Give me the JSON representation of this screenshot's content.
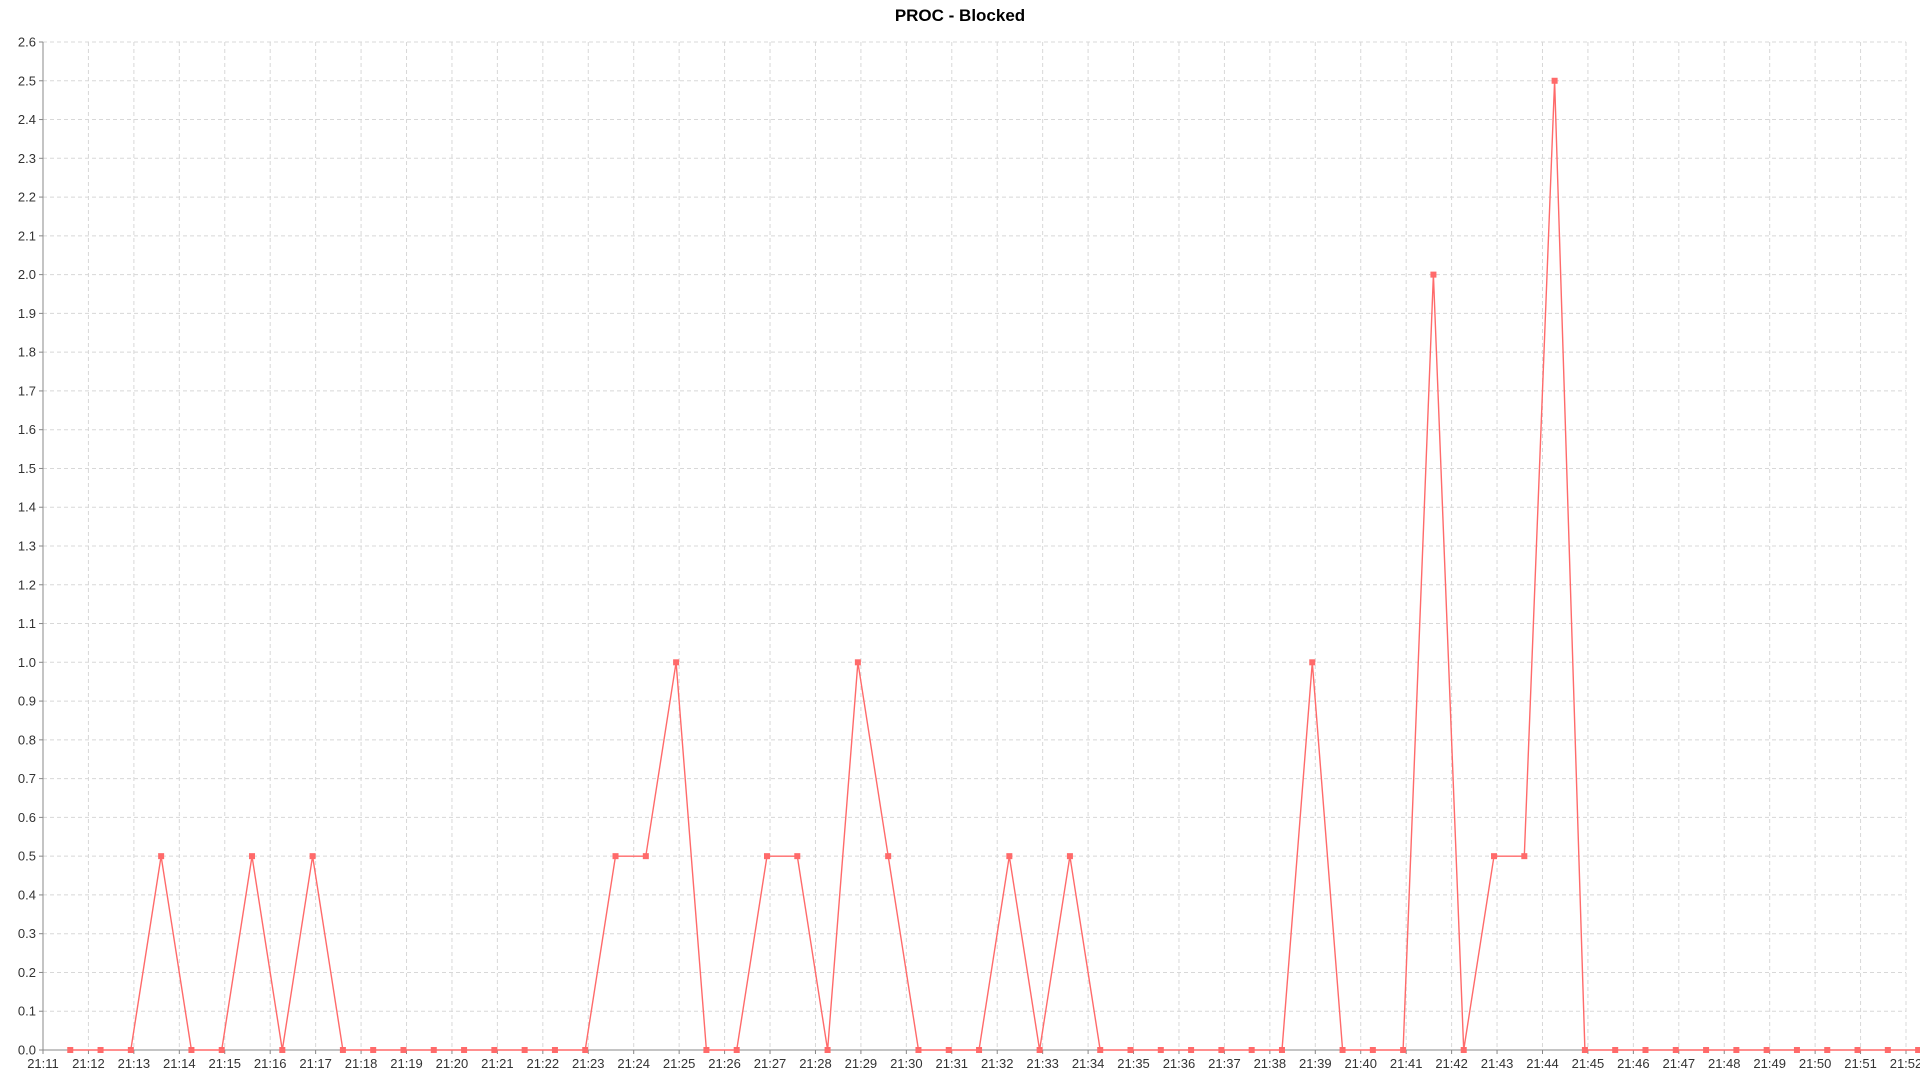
{
  "chart_data": {
    "type": "line",
    "title": "PROC - Blocked",
    "xlabel": "",
    "ylabel": "",
    "ylim": [
      0,
      2.6
    ],
    "y_ticks": [
      "0.0",
      "0.1",
      "0.2",
      "0.3",
      "0.4",
      "0.5",
      "0.6",
      "0.7",
      "0.8",
      "0.9",
      "1.0",
      "1.1",
      "1.2",
      "1.3",
      "1.4",
      "1.5",
      "1.6",
      "1.7",
      "1.8",
      "1.9",
      "2.0",
      "2.1",
      "2.2",
      "2.3",
      "2.4",
      "2.5",
      "2.6"
    ],
    "x_tick_labels": [
      "21:11",
      "21:12",
      "21:13",
      "21:14",
      "21:15",
      "21:16",
      "21:17",
      "21:18",
      "21:19",
      "21:20",
      "21:21",
      "21:22",
      "21:23",
      "21:24",
      "21:25",
      "21:26",
      "21:27",
      "21:28",
      "21:29",
      "21:30",
      "21:31",
      "21:32",
      "21:33",
      "21:34",
      "21:35",
      "21:36",
      "21:37",
      "21:38",
      "21:39",
      "21:40",
      "21:41",
      "21:42",
      "21:43",
      "21:44",
      "21:45",
      "21:46",
      "21:47",
      "21:48",
      "21:49",
      "21:50",
      "21:51",
      "21:52"
    ],
    "grid": true,
    "line_color": "#ff6a6a",
    "series": [
      {
        "x": [
          "21:11:36",
          "21:12:16",
          "21:12:56",
          "21:13:36",
          "21:14:16",
          "21:14:56",
          "21:15:36",
          "21:16:16",
          "21:16:56",
          "21:17:36",
          "21:18:16",
          "21:18:56",
          "21:19:36",
          "21:20:16",
          "21:20:56",
          "21:21:36",
          "21:22:16",
          "21:22:56",
          "21:23:36",
          "21:24:16",
          "21:24:56",
          "21:25:36",
          "21:26:16",
          "21:26:56",
          "21:27:36",
          "21:28:16",
          "21:28:56",
          "21:29:36",
          "21:30:16",
          "21:30:56",
          "21:31:36",
          "21:32:16",
          "21:32:56",
          "21:33:36",
          "21:34:16",
          "21:34:56",
          "21:35:36",
          "21:36:16",
          "21:36:56",
          "21:37:36",
          "21:38:16",
          "21:38:56",
          "21:39:36",
          "21:40:16",
          "21:40:56",
          "21:41:36",
          "21:42:16",
          "21:42:56",
          "21:43:36",
          "21:44:16",
          "21:44:56",
          "21:45:36",
          "21:46:16",
          "21:46:56",
          "21:47:36",
          "21:48:16",
          "21:48:56",
          "21:49:36",
          "21:50:16",
          "21:50:56",
          "21:51:36",
          "21:52:16"
        ],
        "values": [
          0,
          0,
          0,
          0.5,
          0,
          0,
          0.5,
          0,
          0.5,
          0,
          0,
          0,
          0,
          0,
          0,
          0,
          0,
          0,
          0.5,
          0.5,
          1.0,
          0,
          0,
          0.5,
          0.5,
          0,
          1.0,
          0.5,
          0,
          0,
          0,
          0.5,
          0,
          0.5,
          0,
          0,
          0,
          0,
          0,
          0,
          0,
          1.0,
          0,
          0,
          0,
          2.0,
          0,
          0.5,
          0.5,
          2.5,
          0,
          0,
          0,
          0,
          0,
          0,
          0,
          0,
          0,
          0,
          0,
          0
        ]
      }
    ]
  }
}
